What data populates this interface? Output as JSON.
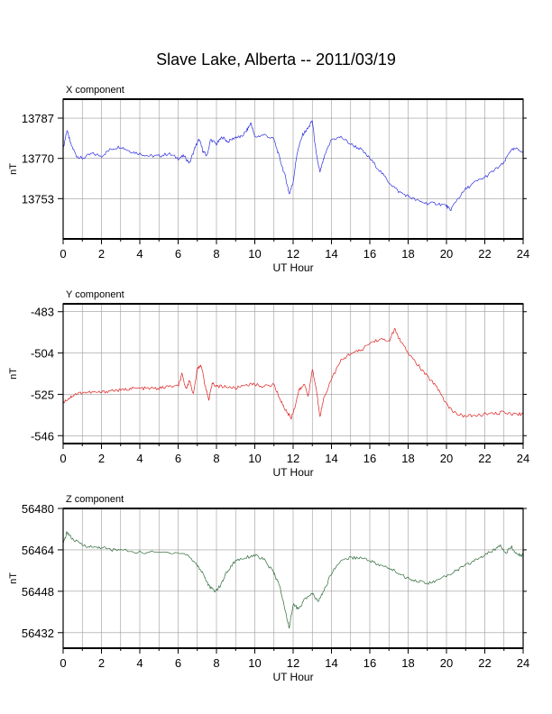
{
  "title": "Slave Lake, Alberta -- 2011/03/19",
  "chart_data": [
    {
      "type": "line",
      "panel_title": "X component",
      "xlabel": "UT Hour",
      "ylabel": "nT",
      "xlim": [
        0,
        24
      ],
      "ylim": [
        13736,
        13795
      ],
      "xticks": [
        0,
        2,
        4,
        6,
        8,
        10,
        12,
        14,
        16,
        18,
        20,
        22,
        24
      ],
      "yticks": [
        13753,
        13770,
        13787
      ],
      "grid": true,
      "line_color": "#2f2fe0",
      "series": [
        {
          "x": [
            0,
            0.2,
            0.4,
            0.7,
            1.0,
            1.5,
            2.0,
            2.5,
            3.0,
            3.5,
            4.0,
            4.5,
            5.0,
            5.5,
            6.0,
            6.3,
            6.6,
            6.9,
            7.1,
            7.3,
            7.5,
            7.7,
            8.0,
            8.3,
            8.6,
            9.0,
            9.3,
            9.6,
            9.8,
            10.0,
            10.5,
            11.0,
            11.3,
            11.6,
            11.8,
            12.0,
            12.2,
            12.5,
            12.8,
            13.0,
            13.2,
            13.4,
            13.6,
            14.0,
            14.5,
            15.0,
            15.5,
            16.0,
            16.5,
            17.0,
            17.5,
            18.0,
            18.5,
            19.0,
            19.5,
            20.0,
            20.2,
            20.5,
            21.0,
            21.5,
            22.0,
            22.5,
            23.0,
            23.3,
            23.6,
            24.0
          ],
          "y": [
            13774,
            13782,
            13776,
            13771,
            13770,
            13772,
            13771,
            13774,
            13775,
            13773,
            13772,
            13771,
            13771,
            13772,
            13770,
            13771,
            13768,
            13775,
            13778,
            13773,
            13771,
            13778,
            13776,
            13779,
            13777,
            13779,
            13779,
            13782,
            13785,
            13779,
            13780,
            13778,
            13770,
            13762,
            13755,
            13760,
            13772,
            13780,
            13783,
            13786,
            13772,
            13764,
            13770,
            13778,
            13779,
            13776,
            13774,
            13770,
            13765,
            13760,
            13756,
            13754,
            13752,
            13751,
            13751,
            13750,
            13748,
            13752,
            13757,
            13760,
            13762,
            13765,
            13768,
            13773,
            13774,
            13773
          ]
        }
      ]
    },
    {
      "type": "line",
      "panel_title": "Y component",
      "xlabel": "UT Hour",
      "ylabel": "nT",
      "xlim": [
        0,
        24
      ],
      "ylim": [
        -550,
        -479
      ],
      "xticks": [
        0,
        2,
        4,
        6,
        8,
        10,
        12,
        14,
        16,
        18,
        20,
        22,
        24
      ],
      "yticks": [
        -546,
        -525,
        -504,
        -483
      ],
      "grid": true,
      "line_color": "#e02020",
      "series": [
        {
          "x": [
            0,
            0.3,
            0.6,
            1.0,
            1.5,
            2.0,
            2.5,
            3.0,
            3.5,
            4.0,
            4.5,
            5.0,
            5.5,
            6.0,
            6.2,
            6.4,
            6.6,
            6.8,
            7.0,
            7.2,
            7.4,
            7.6,
            7.8,
            8.0,
            8.5,
            9.0,
            9.5,
            10.0,
            10.5,
            11.0,
            11.3,
            11.6,
            11.9,
            12.1,
            12.3,
            12.6,
            12.8,
            13.0,
            13.2,
            13.4,
            13.6,
            14.0,
            14.5,
            15.0,
            15.5,
            16.0,
            16.5,
            17.0,
            17.3,
            17.6,
            18.0,
            18.5,
            19.0,
            19.5,
            20.0,
            20.5,
            21.0,
            21.5,
            22.0,
            22.5,
            23.0,
            23.5,
            24.0
          ],
          "y": [
            -529,
            -527,
            -525,
            -524,
            -524,
            -524,
            -523,
            -523,
            -522,
            -522,
            -522,
            -522,
            -521,
            -521,
            -515,
            -522,
            -518,
            -525,
            -512,
            -510,
            -520,
            -528,
            -519,
            -521,
            -521,
            -522,
            -520,
            -520,
            -521,
            -520,
            -527,
            -533,
            -537,
            -531,
            -523,
            -520,
            -526,
            -512,
            -522,
            -536,
            -527,
            -517,
            -508,
            -504,
            -503,
            -499,
            -497,
            -498,
            -492,
            -498,
            -504,
            -510,
            -516,
            -521,
            -530,
            -535,
            -536,
            -536,
            -535,
            -535,
            -534,
            -535,
            -535
          ]
        }
      ]
    },
    {
      "type": "line",
      "panel_title": "Z component",
      "xlabel": "UT Hour",
      "ylabel": "nT",
      "xlim": [
        0,
        24
      ],
      "ylim": [
        56426,
        56480
      ],
      "xticks": [
        0,
        2,
        4,
        6,
        8,
        10,
        12,
        14,
        16,
        18,
        20,
        22,
        24
      ],
      "yticks": [
        56432,
        56448,
        56464,
        56480
      ],
      "grid": true,
      "line_color": "#2e6b3a",
      "series": [
        {
          "x": [
            0,
            0.2,
            0.5,
            1.0,
            1.5,
            2.0,
            2.5,
            3.0,
            4.0,
            5.0,
            6.0,
            6.5,
            7.0,
            7.3,
            7.6,
            7.9,
            8.2,
            8.5,
            9.0,
            9.5,
            10.0,
            10.5,
            11.0,
            11.3,
            11.6,
            11.8,
            12.0,
            12.3,
            12.6,
            13.0,
            13.3,
            13.6,
            14.0,
            14.5,
            15.0,
            15.5,
            16.0,
            16.5,
            17.0,
            17.5,
            18.0,
            18.5,
            19.0,
            19.5,
            20.0,
            20.5,
            21.0,
            21.5,
            22.0,
            22.5,
            22.8,
            23.1,
            23.4,
            23.7,
            24.0
          ],
          "y": [
            56466,
            56471,
            56468,
            56466,
            56465,
            56465,
            56464,
            56464,
            56463,
            56463,
            56463,
            56462,
            56458,
            56455,
            56450,
            56448,
            56450,
            56455,
            56460,
            56461,
            56462,
            56460,
            56455,
            56450,
            56440,
            56434,
            56443,
            56441,
            56445,
            56447,
            56444,
            56448,
            56455,
            56460,
            56461,
            56461,
            56460,
            56458,
            56457,
            56455,
            56453,
            56452,
            56451,
            56452,
            56454,
            56456,
            56458,
            56460,
            56462,
            56464,
            56466,
            56463,
            56465,
            56462,
            56462
          ]
        }
      ]
    }
  ]
}
